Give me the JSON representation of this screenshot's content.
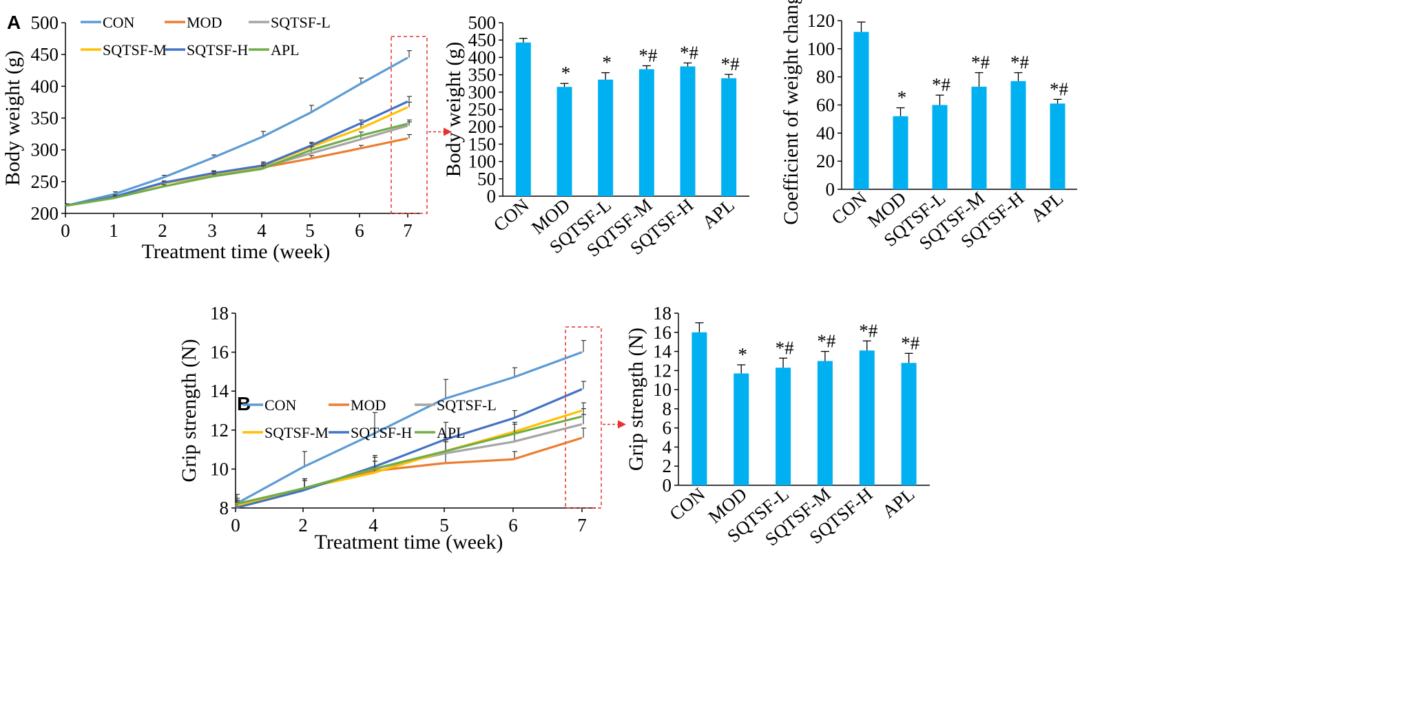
{
  "panel_labels": [
    "A",
    "B"
  ],
  "colors": {
    "CON": "#5b9bd5",
    "MOD": "#ed7d31",
    "SQTSF-L": "#a5a5a5",
    "SQTSF-M": "#ffc000",
    "SQTSF-H": "#4472c4",
    "APL": "#70ad47",
    "bar": "#00b0f0",
    "highlight": "#e8312f"
  },
  "chart_data": [
    {
      "id": "A-line",
      "type": "line",
      "xlabel": "Treatment time (week)",
      "ylabel": "Body weight (g)",
      "x": [
        0,
        1,
        2,
        3,
        4,
        5,
        6,
        7
      ],
      "xticks": [
        0,
        1,
        2,
        3,
        4,
        5,
        6,
        7
      ],
      "ylim": [
        200,
        500
      ],
      "yticks": [
        200,
        250,
        300,
        350,
        400,
        450,
        500
      ],
      "legend": "top-left",
      "highlight_x": 7,
      "series": [
        {
          "name": "CON",
          "values": [
            212,
            230,
            256,
            287,
            320,
            358,
            403,
            445
          ],
          "err": [
            3,
            4,
            4,
            5,
            9,
            12,
            10,
            11
          ]
        },
        {
          "name": "MOD",
          "values": [
            212,
            226,
            247,
            262,
            272,
            286,
            302,
            318
          ],
          "err": [
            3,
            3,
            3,
            4,
            5,
            5,
            5,
            6
          ]
        },
        {
          "name": "SQTSF-L",
          "values": [
            212,
            226,
            247,
            260,
            272,
            294,
            316,
            338
          ],
          "err": [
            3,
            3,
            3,
            4,
            5,
            6,
            6,
            6
          ]
        },
        {
          "name": "SQTSF-M",
          "values": [
            212,
            226,
            247,
            262,
            274,
            304,
            333,
            367
          ],
          "err": [
            3,
            3,
            3,
            4,
            5,
            6,
            7,
            8
          ]
        },
        {
          "name": "SQTSF-H",
          "values": [
            212,
            226,
            248,
            263,
            275,
            306,
            341,
            376
          ],
          "err": [
            3,
            3,
            3,
            4,
            6,
            6,
            6,
            8
          ]
        },
        {
          "name": "APL",
          "values": [
            212,
            224,
            242,
            258,
            270,
            299,
            322,
            341
          ],
          "err": [
            3,
            3,
            3,
            4,
            5,
            6,
            6,
            6
          ]
        }
      ]
    },
    {
      "id": "A-bar-weight",
      "type": "bar",
      "ylabel": "Body weight (g)",
      "categories": [
        "CON",
        "MOD",
        "SQTSF-L",
        "SQTSF-M",
        "SQTSF-H",
        "APL"
      ],
      "values": [
        443,
        315,
        336,
        366,
        374,
        340
      ],
      "err": [
        12,
        10,
        20,
        10,
        10,
        11
      ],
      "ylim": [
        0,
        500
      ],
      "yticks": [
        0,
        50,
        100,
        150,
        200,
        250,
        300,
        350,
        400,
        450,
        500
      ],
      "annotations": [
        "",
        "*",
        "*",
        "*#",
        "*#",
        "*#"
      ]
    },
    {
      "id": "A-bar-coef",
      "type": "bar",
      "ylabel": "Coefficient of weight change",
      "categories": [
        "CON",
        "MOD",
        "SQTSF-L",
        "SQTSF-M",
        "SQTSF-H",
        "APL"
      ],
      "values": [
        112,
        52,
        60,
        73,
        77,
        61
      ],
      "err": [
        7,
        6,
        7,
        10,
        6,
        3
      ],
      "ylim": [
        0,
        120
      ],
      "yticks": [
        0,
        20,
        40,
        60,
        80,
        100,
        120
      ],
      "annotations": [
        "",
        "*",
        "*#",
        "*#",
        "*#",
        "*#"
      ]
    },
    {
      "id": "B-line",
      "type": "line",
      "xlabel": "Treatment time (week)",
      "ylabel": "Grip strength (N)",
      "x": [
        0,
        2,
        4,
        5,
        6,
        7
      ],
      "xticks": [
        0,
        2,
        4,
        5,
        6,
        7
      ],
      "ylim": [
        8,
        18
      ],
      "yticks": [
        8,
        10,
        12,
        14,
        16,
        18
      ],
      "legend": "top-left",
      "highlight_x": 7,
      "series": [
        {
          "name": "CON",
          "values": [
            8.2,
            10.1,
            11.8,
            13.6,
            14.7,
            16.0
          ],
          "err": [
            0.5,
            0.8,
            1.1,
            1.0,
            0.5,
            0.6
          ]
        },
        {
          "name": "MOD",
          "values": [
            8.1,
            9.0,
            9.9,
            10.3,
            10.5,
            11.6
          ],
          "err": [
            0.3,
            0.5,
            0.5,
            0.5,
            0.4,
            0.5
          ]
        },
        {
          "name": "SQTSF-L",
          "values": [
            8.1,
            9.0,
            10.0,
            10.8,
            11.4,
            12.3
          ],
          "err": [
            0.3,
            0.5,
            0.6,
            0.6,
            0.5,
            0.5
          ]
        },
        {
          "name": "SQTSF-M",
          "values": [
            8.1,
            9.0,
            9.8,
            10.9,
            11.9,
            13.0
          ],
          "err": [
            0.3,
            0.5,
            0.6,
            0.7,
            0.5,
            0.4
          ]
        },
        {
          "name": "SQTSF-H",
          "values": [
            8.0,
            8.9,
            10.1,
            11.5,
            12.6,
            14.1
          ],
          "err": [
            0.3,
            0.5,
            0.6,
            0.9,
            0.4,
            0.4
          ]
        },
        {
          "name": "APL",
          "values": [
            8.2,
            9.0,
            10.0,
            10.9,
            11.8,
            12.7
          ],
          "err": [
            0.3,
            0.5,
            0.6,
            0.6,
            0.5,
            0.4
          ]
        }
      ]
    },
    {
      "id": "B-bar",
      "type": "bar",
      "ylabel": "Grip strength (N)",
      "categories": [
        "CON",
        "MOD",
        "SQTSF-L",
        "SQTSF-M",
        "SQTSF-H",
        "APL"
      ],
      "values": [
        16.0,
        11.7,
        12.3,
        13.0,
        14.1,
        12.8
      ],
      "err": [
        1.0,
        0.9,
        1.0,
        1.0,
        1.0,
        1.0
      ],
      "ylim": [
        0,
        18
      ],
      "yticks": [
        0,
        2,
        4,
        6,
        8,
        10,
        12,
        14,
        16,
        18
      ],
      "annotations": [
        "",
        "*",
        "*#",
        "*#",
        "*#",
        "*#"
      ]
    }
  ]
}
